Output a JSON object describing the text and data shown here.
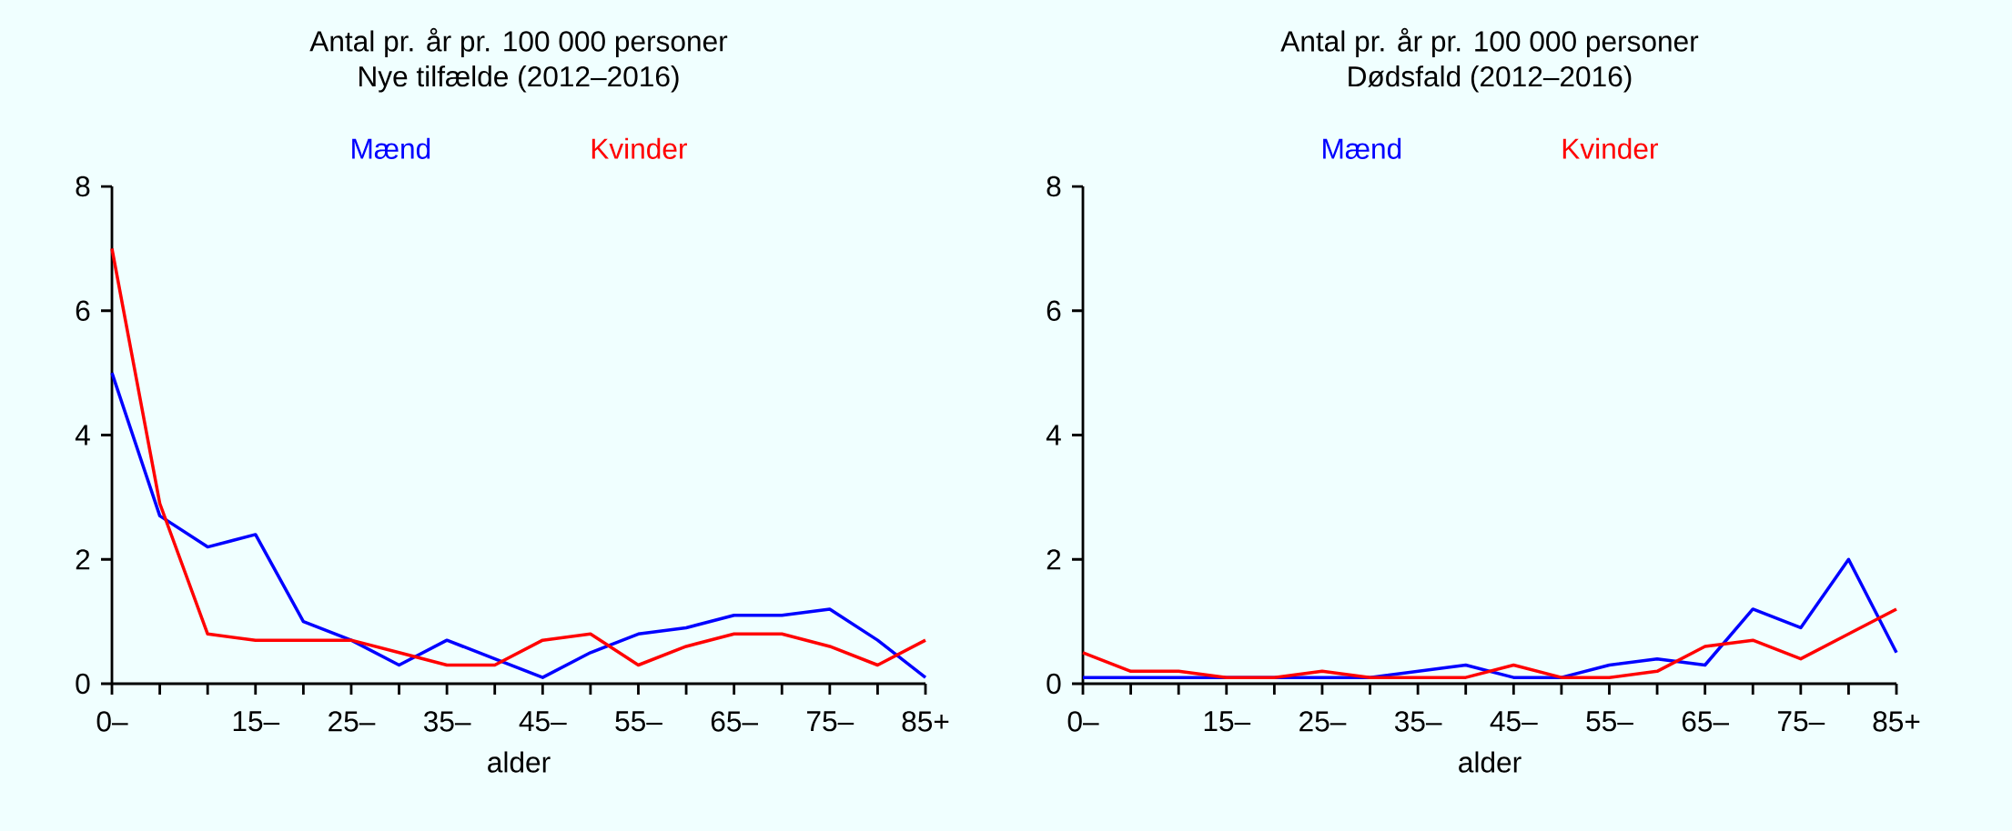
{
  "chart_data": [
    {
      "type": "line",
      "title": "Antal pr. år pr. 100 000 personer",
      "subtitle": "Nye tilfælde (2012–2016)",
      "xlabel": "alder",
      "categories": [
        "0–",
        null,
        null,
        "15–",
        null,
        "25–",
        null,
        "35–",
        null,
        "45–",
        null,
        "55–",
        null,
        "65–",
        null,
        "75–",
        null,
        "85+"
      ],
      "ylim": [
        0,
        8
      ],
      "yticks": [
        0,
        2,
        4,
        6,
        8
      ],
      "legend": "top",
      "series": [
        {
          "name": "Mænd",
          "color": "#0000ff",
          "values": [
            5.0,
            2.7,
            2.2,
            2.4,
            1.0,
            0.7,
            0.3,
            0.7,
            0.4,
            0.1,
            0.5,
            0.8,
            0.9,
            1.1,
            1.1,
            1.2,
            0.7,
            0.1
          ]
        },
        {
          "name": "Kvinder",
          "color": "#ff0000",
          "values": [
            7.0,
            2.9,
            0.8,
            0.7,
            0.7,
            0.7,
            0.5,
            0.3,
            0.3,
            0.7,
            0.8,
            0.3,
            0.6,
            0.8,
            0.8,
            0.6,
            0.3,
            0.7
          ]
        }
      ]
    },
    {
      "type": "line",
      "title": "Antal pr. år pr. 100 000 personer",
      "subtitle": "Dødsfald (2012–2016)",
      "xlabel": "alder",
      "categories": [
        "0–",
        null,
        null,
        "15–",
        null,
        "25–",
        null,
        "35–",
        null,
        "45–",
        null,
        "55–",
        null,
        "65–",
        null,
        "75–",
        null,
        "85+"
      ],
      "ylim": [
        0,
        8
      ],
      "yticks": [
        0,
        2,
        4,
        6,
        8
      ],
      "legend": "top",
      "series": [
        {
          "name": "Mænd",
          "color": "#0000ff",
          "values": [
            0.1,
            0.1,
            0.1,
            0.1,
            0.1,
            0.1,
            0.1,
            0.2,
            0.3,
            0.1,
            0.1,
            0.3,
            0.4,
            0.3,
            1.2,
            0.9,
            2.0,
            0.5
          ]
        },
        {
          "name": "Kvinder",
          "color": "#ff0000",
          "values": [
            0.5,
            0.2,
            0.2,
            0.1,
            0.1,
            0.2,
            0.1,
            0.1,
            0.1,
            0.3,
            0.1,
            0.1,
            0.2,
            0.6,
            0.7,
            0.4,
            0.8,
            1.2
          ]
        }
      ]
    }
  ]
}
